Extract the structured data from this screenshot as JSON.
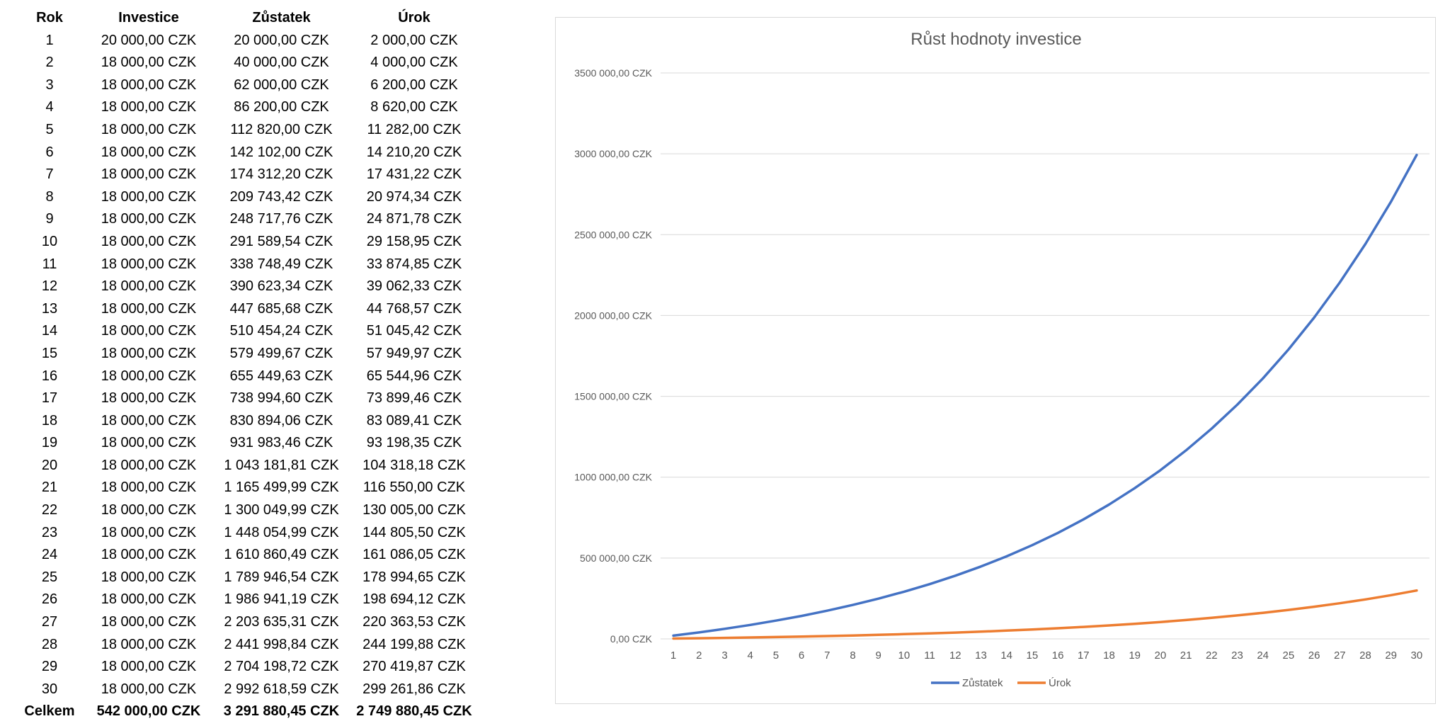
{
  "table": {
    "headers": [
      "Rok",
      "Investice",
      "Zůstatek",
      "Úrok"
    ],
    "rows": [
      [
        "1",
        "20 000,00 CZK",
        "20 000,00 CZK",
        "2 000,00 CZK"
      ],
      [
        "2",
        "18 000,00 CZK",
        "40 000,00 CZK",
        "4 000,00 CZK"
      ],
      [
        "3",
        "18 000,00 CZK",
        "62 000,00 CZK",
        "6 200,00 CZK"
      ],
      [
        "4",
        "18 000,00 CZK",
        "86 200,00 CZK",
        "8 620,00 CZK"
      ],
      [
        "5",
        "18 000,00 CZK",
        "112 820,00 CZK",
        "11 282,00 CZK"
      ],
      [
        "6",
        "18 000,00 CZK",
        "142 102,00 CZK",
        "14 210,20 CZK"
      ],
      [
        "7",
        "18 000,00 CZK",
        "174 312,20 CZK",
        "17 431,22 CZK"
      ],
      [
        "8",
        "18 000,00 CZK",
        "209 743,42 CZK",
        "20 974,34 CZK"
      ],
      [
        "9",
        "18 000,00 CZK",
        "248 717,76 CZK",
        "24 871,78 CZK"
      ],
      [
        "10",
        "18 000,00 CZK",
        "291 589,54 CZK",
        "29 158,95 CZK"
      ],
      [
        "11",
        "18 000,00 CZK",
        "338 748,49 CZK",
        "33 874,85 CZK"
      ],
      [
        "12",
        "18 000,00 CZK",
        "390 623,34 CZK",
        "39 062,33 CZK"
      ],
      [
        "13",
        "18 000,00 CZK",
        "447 685,68 CZK",
        "44 768,57 CZK"
      ],
      [
        "14",
        "18 000,00 CZK",
        "510 454,24 CZK",
        "51 045,42 CZK"
      ],
      [
        "15",
        "18 000,00 CZK",
        "579 499,67 CZK",
        "57 949,97 CZK"
      ],
      [
        "16",
        "18 000,00 CZK",
        "655 449,63 CZK",
        "65 544,96 CZK"
      ],
      [
        "17",
        "18 000,00 CZK",
        "738 994,60 CZK",
        "73 899,46 CZK"
      ],
      [
        "18",
        "18 000,00 CZK",
        "830 894,06 CZK",
        "83 089,41 CZK"
      ],
      [
        "19",
        "18 000,00 CZK",
        "931 983,46 CZK",
        "93 198,35 CZK"
      ],
      [
        "20",
        "18 000,00 CZK",
        "1 043 181,81 CZK",
        "104 318,18 CZK"
      ],
      [
        "21",
        "18 000,00 CZK",
        "1 165 499,99 CZK",
        "116 550,00 CZK"
      ],
      [
        "22",
        "18 000,00 CZK",
        "1 300 049,99 CZK",
        "130 005,00 CZK"
      ],
      [
        "23",
        "18 000,00 CZK",
        "1 448 054,99 CZK",
        "144 805,50 CZK"
      ],
      [
        "24",
        "18 000,00 CZK",
        "1 610 860,49 CZK",
        "161 086,05 CZK"
      ],
      [
        "25",
        "18 000,00 CZK",
        "1 789 946,54 CZK",
        "178 994,65 CZK"
      ],
      [
        "26",
        "18 000,00 CZK",
        "1 986 941,19 CZK",
        "198 694,12 CZK"
      ],
      [
        "27",
        "18 000,00 CZK",
        "2 203 635,31 CZK",
        "220 363,53 CZK"
      ],
      [
        "28",
        "18 000,00 CZK",
        "2 441 998,84 CZK",
        "244 199,88 CZK"
      ],
      [
        "29",
        "18 000,00 CZK",
        "2 704 198,72 CZK",
        "270 419,87 CZK"
      ],
      [
        "30",
        "18 000,00 CZK",
        "2 992 618,59 CZK",
        "299 261,86 CZK"
      ]
    ],
    "total": [
      "Celkem",
      "542 000,00 CZK",
      "3 291 880,45 CZK",
      "2 749 880,45 CZK"
    ]
  },
  "chart_data": {
    "type": "line",
    "title": "Růst hodnoty investice",
    "xlabel": "",
    "ylabel": "",
    "x": [
      1,
      2,
      3,
      4,
      5,
      6,
      7,
      8,
      9,
      10,
      11,
      12,
      13,
      14,
      15,
      16,
      17,
      18,
      19,
      20,
      21,
      22,
      23,
      24,
      25,
      26,
      27,
      28,
      29,
      30
    ],
    "ylim": [
      0,
      3500000
    ],
    "y_ticks": [
      0,
      500000,
      1000000,
      1500000,
      2000000,
      2500000,
      3000000,
      3500000
    ],
    "y_tick_labels": [
      "0,00 CZK",
      "500 000,00 CZK",
      "1000 000,00 CZK",
      "1500 000,00 CZK",
      "2000 000,00 CZK",
      "2500 000,00 CZK",
      "3000 000,00 CZK",
      "3500 000,00 CZK"
    ],
    "grid": true,
    "legend": "bottom",
    "series": [
      {
        "name": "Zůstatek",
        "color": "#4472C4",
        "values": [
          20000,
          40000,
          62000,
          86200,
          112820,
          142102,
          174312.2,
          209743.42,
          248717.76,
          291589.54,
          338748.49,
          390623.34,
          447685.68,
          510454.24,
          579499.67,
          655449.63,
          738994.6,
          830894.06,
          931983.46,
          1043181.81,
          1165499.99,
          1300049.99,
          1448054.99,
          1610860.49,
          1789946.54,
          1986941.19,
          2203635.31,
          2441998.84,
          2704198.72,
          2992618.59
        ]
      },
      {
        "name": "Úrok",
        "color": "#ED7D31",
        "values": [
          2000,
          4000,
          6200,
          8620,
          11282,
          14210.2,
          17431.22,
          20974.34,
          24871.78,
          29158.95,
          33874.85,
          39062.33,
          44768.57,
          51045.42,
          57949.97,
          65544.96,
          73899.46,
          83089.41,
          93198.35,
          104318.18,
          116550,
          130005,
          144805.5,
          161086.05,
          178994.65,
          198694.12,
          220363.53,
          244199.88,
          270419.87,
          299261.86
        ]
      }
    ]
  }
}
